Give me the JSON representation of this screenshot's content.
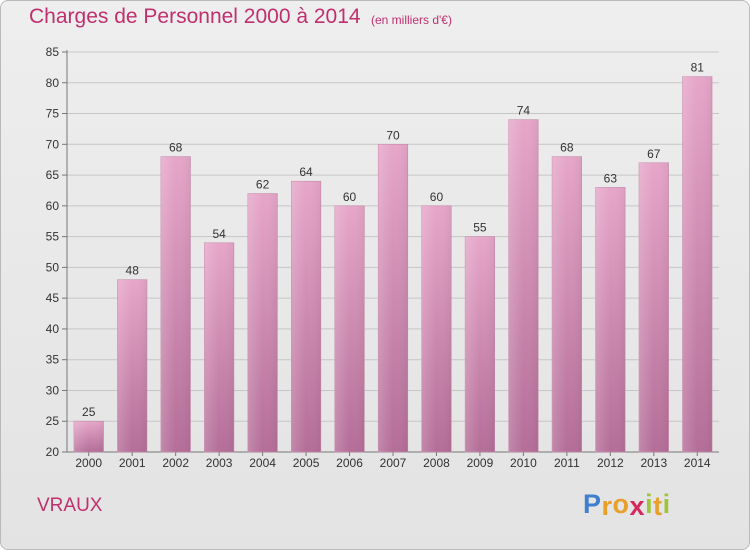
{
  "chart_data": {
    "type": "bar",
    "title": "Charges de Personnel 2000 à 2014",
    "subtitle": "(en milliers d'€)",
    "categories": [
      "2000",
      "2001",
      "2002",
      "2003",
      "2004",
      "2005",
      "2006",
      "2007",
      "2008",
      "2009",
      "2010",
      "2011",
      "2012",
      "2013",
      "2014"
    ],
    "values": [
      25,
      48,
      68,
      54,
      62,
      64,
      60,
      70,
      60,
      55,
      74,
      68,
      63,
      67,
      81
    ],
    "ylim": [
      20,
      85
    ],
    "yticks": [
      20,
      25,
      30,
      35,
      40,
      45,
      50,
      55,
      60,
      65,
      70,
      75,
      80,
      85
    ],
    "grid": true,
    "bar_color": "#d47aa8"
  },
  "commune": "VRAUX",
  "brand": {
    "letters": [
      "P",
      "r",
      "o",
      "x",
      "i",
      "t",
      "i"
    ],
    "colors": [
      "#3f7fcf",
      "#e9a02a",
      "#e9a02a",
      "#d4285e",
      "#9fc43a",
      "#e9a02a",
      "#9fc43a"
    ]
  }
}
